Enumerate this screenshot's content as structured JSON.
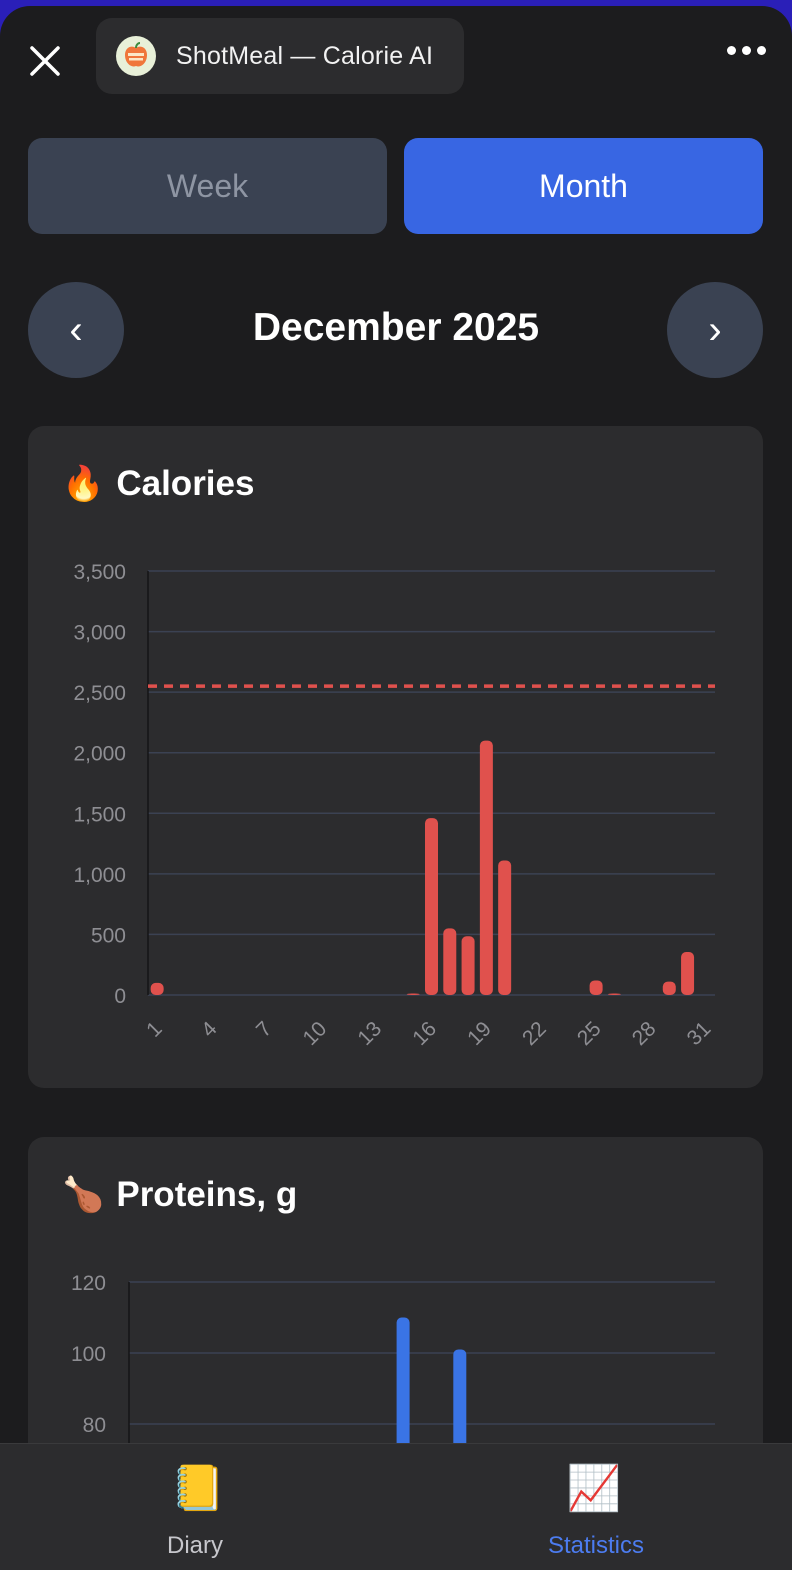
{
  "header": {
    "close_icon": "close-icon",
    "app_title": "ShotMeal — Calorie AI",
    "logo_icon": "apple-logo-icon",
    "more_icon": "more-horizontal-icon"
  },
  "period_tabs": [
    {
      "label": "Week",
      "active": false
    },
    {
      "label": "Month",
      "active": true
    }
  ],
  "month_nav": {
    "prev_label": "‹",
    "next_label": "›",
    "current": "December 2025"
  },
  "cards": {
    "calories": {
      "emoji": "🔥",
      "title": "Calories"
    },
    "proteins": {
      "emoji": "🍗",
      "title": "Proteins, g"
    }
  },
  "colors": {
    "calories_bar": "#e0514d",
    "proteins_bar": "#3a74e5",
    "accent": "#3866e3",
    "target_line": "#e0514d"
  },
  "chart_data": [
    {
      "type": "bar",
      "name": "calories",
      "x_ticks": [
        "1",
        "4",
        "7",
        "10",
        "13",
        "16",
        "19",
        "22",
        "25",
        "28",
        "31"
      ],
      "days": [
        1,
        15,
        16,
        17,
        18,
        19,
        20,
        25,
        26,
        29,
        30
      ],
      "values": [
        100,
        10,
        1460,
        550,
        485,
        2100,
        1110,
        120,
        10,
        110,
        355
      ],
      "y_ticks": [
        "0",
        "500",
        "1,000",
        "1,500",
        "2,000",
        "2,500",
        "3,000",
        "3,500"
      ],
      "ylim": [
        0,
        3500
      ],
      "xlim": [
        1,
        31
      ],
      "target_line": 2550,
      "grid": true
    },
    {
      "type": "bar",
      "name": "proteins",
      "days": [
        15,
        18
      ],
      "values": [
        110,
        101
      ],
      "y_ticks": [
        "80",
        "100",
        "120"
      ],
      "ylim": [
        0,
        120
      ],
      "grid": true
    }
  ],
  "tabbar": [
    {
      "label": "Diary",
      "icon": "notebook-icon",
      "active": false
    },
    {
      "label": "Statistics",
      "icon": "chart-increasing-icon",
      "active": true
    }
  ]
}
